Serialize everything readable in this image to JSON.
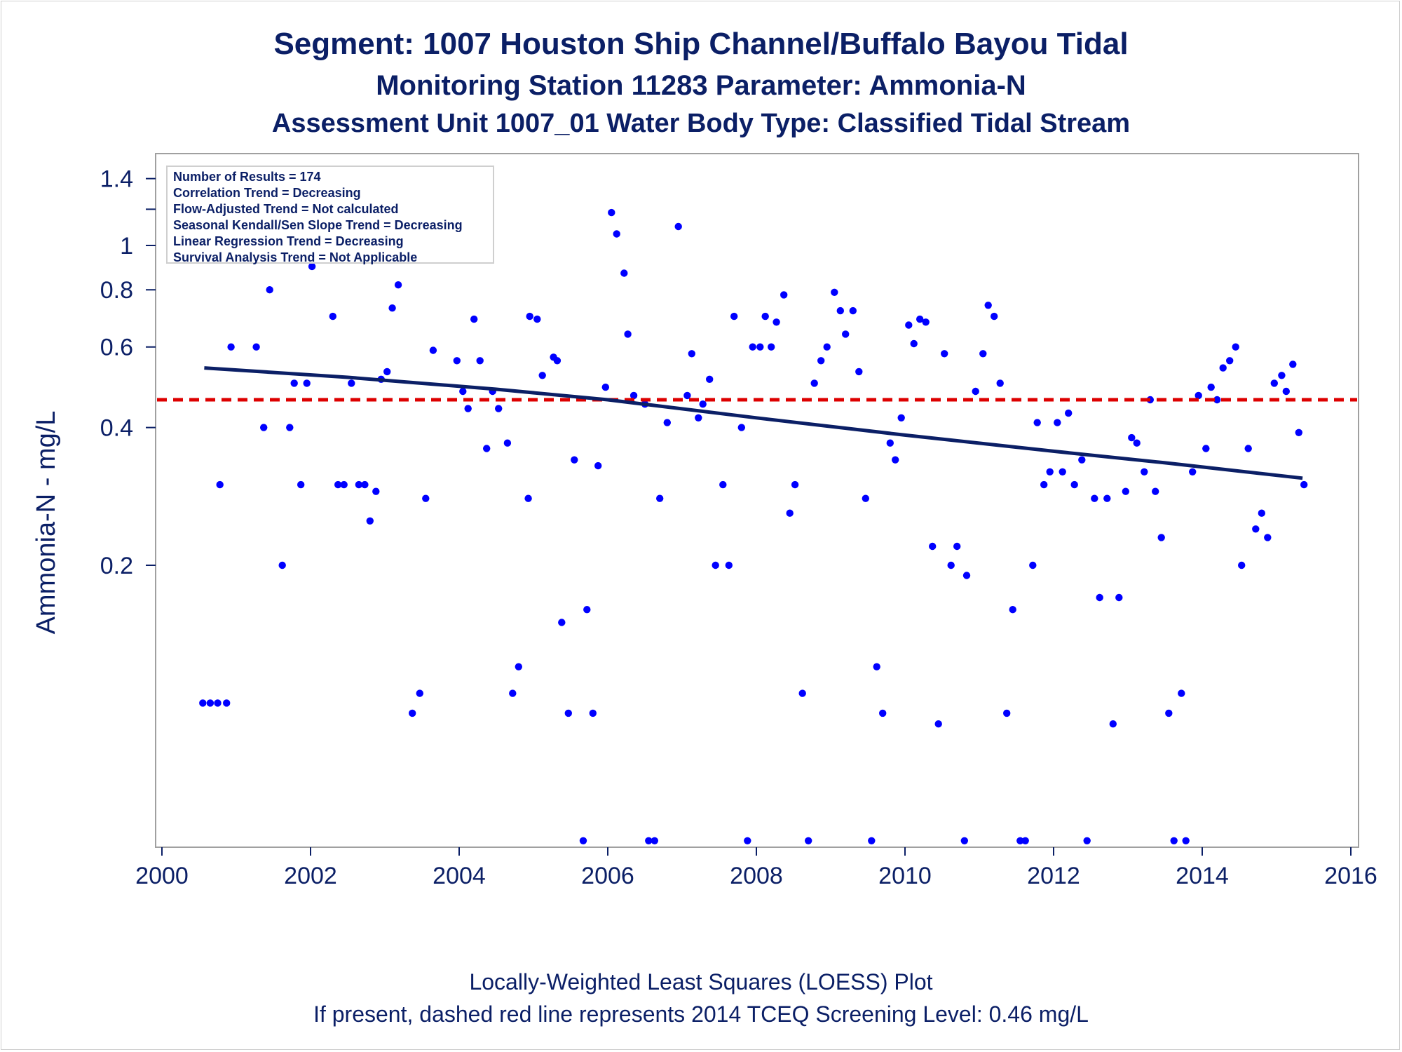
{
  "titles": {
    "line1": "Segment: 1007  Houston Ship Channel/Buffalo Bayou Tidal",
    "line2": "Monitoring Station 11283 Parameter: Ammonia-N",
    "line3": "Assessment Unit 1007_01   Water Body Type: Classified Tidal Stream"
  },
  "footer": {
    "line1": "Locally-Weighted Least Squares (LOESS) Plot",
    "line2": "If present, dashed red line represents 2014 TCEQ Screening Level: 0.46 mg/L"
  },
  "legend": [
    "Number of Results = 174",
    "Correlation Trend = Decreasing",
    "Flow-Adjusted Trend = Not calculated",
    "Seasonal Kendall/Sen Slope Trend = Decreasing",
    "Linear Regression Trend = Decreasing",
    "Survival Analysis Trend = Not Applicable"
  ],
  "colors": {
    "points": "#0000ff",
    "loess": "#0b1f66",
    "screening": "#dd0000",
    "text": "#0b1f66",
    "frame": "#a0a0a0"
  },
  "chart_data": {
    "type": "scatter",
    "ylabel": "Ammonia-N - mg/L",
    "xlabel": "",
    "yscale": "log",
    "xlim": [
      2000,
      2016
    ],
    "ylim": [
      0.05,
      1.5
    ],
    "xticks": [
      2000,
      2002,
      2004,
      2006,
      2008,
      2010,
      2012,
      2014,
      2016
    ],
    "yticks": [
      0.2,
      0.4,
      0.6,
      0.8,
      1,
      1.4
    ],
    "yticks_unlabeled": [
      1.2
    ],
    "screening_level": 0.46,
    "loess": {
      "x": [
        2000.57,
        2002.5,
        2004.5,
        2006,
        2008,
        2010,
        2012,
        2013.5,
        2015.35
      ],
      "y": [
        0.54,
        0.515,
        0.485,
        0.46,
        0.42,
        0.385,
        0.355,
        0.335,
        0.31
      ]
    },
    "points": [
      [
        2000.55,
        0.1
      ],
      [
        2000.65,
        0.1
      ],
      [
        2000.75,
        0.1
      ],
      [
        2000.87,
        0.1
      ],
      [
        2000.78,
        0.3
      ],
      [
        2000.93,
        0.6
      ],
      [
        2001.02,
        1.3
      ],
      [
        2001.12,
        1.45
      ],
      [
        2001.2,
        1.0
      ],
      [
        2001.27,
        0.6
      ],
      [
        2001.37,
        0.4
      ],
      [
        2001.45,
        0.8
      ],
      [
        2001.62,
        0.2
      ],
      [
        2001.72,
        0.4
      ],
      [
        2001.78,
        0.5
      ],
      [
        2001.87,
        0.3
      ],
      [
        2001.95,
        0.5
      ],
      [
        2002.02,
        0.9
      ],
      [
        2002.1,
        1.0
      ],
      [
        2002.18,
        1.0
      ],
      [
        2002.3,
        0.7
      ],
      [
        2002.37,
        0.3
      ],
      [
        2002.45,
        0.3
      ],
      [
        2002.55,
        0.5
      ],
      [
        2002.65,
        0.3
      ],
      [
        2002.73,
        0.3
      ],
      [
        2002.8,
        0.25
      ],
      [
        2002.88,
        0.29
      ],
      [
        2002.95,
        0.51
      ],
      [
        2003.03,
        0.53
      ],
      [
        2003.1,
        0.73
      ],
      [
        2003.18,
        0.82
      ],
      [
        2003.27,
        0.94
      ],
      [
        2003.37,
        0.095
      ],
      [
        2003.47,
        0.105
      ],
      [
        2003.55,
        0.28
      ],
      [
        2003.65,
        0.59
      ],
      [
        2003.97,
        0.56
      ],
      [
        2004.05,
        0.48
      ],
      [
        2004.12,
        0.44
      ],
      [
        2004.2,
        0.69
      ],
      [
        2004.28,
        0.56
      ],
      [
        2004.37,
        0.36
      ],
      [
        2004.45,
        0.48
      ],
      [
        2004.53,
        0.44
      ],
      [
        2004.65,
        0.37
      ],
      [
        2004.72,
        0.105
      ],
      [
        2004.8,
        0.12
      ],
      [
        2004.93,
        0.28
      ],
      [
        2004.95,
        0.7
      ],
      [
        2005.05,
        0.69
      ],
      [
        2005.12,
        0.52
      ],
      [
        2005.27,
        0.57
      ],
      [
        2005.32,
        0.56
      ],
      [
        2005.38,
        0.15
      ],
      [
        2005.47,
        0.095
      ],
      [
        2005.55,
        0.34
      ],
      [
        2005.67,
        0.05
      ],
      [
        2005.72,
        0.16
      ],
      [
        2005.8,
        0.095
      ],
      [
        2005.87,
        0.33
      ],
      [
        2005.97,
        0.49
      ],
      [
        2006.05,
        1.18
      ],
      [
        2006.12,
        1.06
      ],
      [
        2006.22,
        0.87
      ],
      [
        2006.27,
        0.64
      ],
      [
        2006.35,
        0.47
      ],
      [
        2006.5,
        0.45
      ],
      [
        2006.55,
        0.05
      ],
      [
        2006.63,
        0.05
      ],
      [
        2006.7,
        0.28
      ],
      [
        2006.8,
        0.41
      ],
      [
        2006.95,
        1.1
      ],
      [
        2007.07,
        0.47
      ],
      [
        2007.13,
        0.58
      ],
      [
        2007.22,
        0.42
      ],
      [
        2007.28,
        0.45
      ],
      [
        2007.37,
        0.51
      ],
      [
        2007.45,
        0.2
      ],
      [
        2007.55,
        0.3
      ],
      [
        2007.63,
        0.2
      ],
      [
        2007.7,
        0.7
      ],
      [
        2007.8,
        0.4
      ],
      [
        2007.88,
        0.05
      ],
      [
        2007.95,
        0.6
      ],
      [
        2008.05,
        0.6
      ],
      [
        2008.12,
        0.7
      ],
      [
        2008.2,
        0.6
      ],
      [
        2008.27,
        0.68
      ],
      [
        2008.37,
        0.78
      ],
      [
        2008.45,
        0.26
      ],
      [
        2008.52,
        0.3
      ],
      [
        2008.62,
        0.105
      ],
      [
        2008.7,
        0.05
      ],
      [
        2008.78,
        0.5
      ],
      [
        2008.87,
        0.56
      ],
      [
        2008.95,
        0.6
      ],
      [
        2009.05,
        0.79
      ],
      [
        2009.13,
        0.72
      ],
      [
        2009.2,
        0.64
      ],
      [
        2009.3,
        0.72
      ],
      [
        2009.38,
        0.53
      ],
      [
        2009.47,
        0.28
      ],
      [
        2009.55,
        0.05
      ],
      [
        2009.62,
        0.12
      ],
      [
        2009.7,
        0.095
      ],
      [
        2009.8,
        0.37
      ],
      [
        2009.87,
        0.34
      ],
      [
        2009.95,
        0.42
      ],
      [
        2010.05,
        0.67
      ],
      [
        2010.12,
        0.61
      ],
      [
        2010.2,
        0.69
      ],
      [
        2010.28,
        0.68
      ],
      [
        2010.37,
        0.22
      ],
      [
        2010.45,
        0.09
      ],
      [
        2010.53,
        0.58
      ],
      [
        2010.62,
        0.2
      ],
      [
        2010.7,
        0.22
      ],
      [
        2010.8,
        0.05
      ],
      [
        2010.83,
        0.19
      ],
      [
        2010.95,
        0.48
      ],
      [
        2011.05,
        0.58
      ],
      [
        2011.12,
        0.74
      ],
      [
        2011.2,
        0.7
      ],
      [
        2011.28,
        0.5
      ],
      [
        2011.37,
        0.095
      ],
      [
        2011.45,
        0.16
      ],
      [
        2011.55,
        0.05
      ],
      [
        2011.62,
        0.05
      ],
      [
        2011.72,
        0.2
      ],
      [
        2011.78,
        0.41
      ],
      [
        2011.87,
        0.3
      ],
      [
        2011.95,
        0.32
      ],
      [
        2012.05,
        0.41
      ],
      [
        2012.12,
        0.32
      ],
      [
        2012.2,
        0.43
      ],
      [
        2012.28,
        0.3
      ],
      [
        2012.38,
        0.34
      ],
      [
        2012.45,
        0.05
      ],
      [
        2012.55,
        0.28
      ],
      [
        2012.62,
        0.17
      ],
      [
        2012.72,
        0.28
      ],
      [
        2012.8,
        0.09
      ],
      [
        2012.88,
        0.17
      ],
      [
        2012.97,
        0.29
      ],
      [
        2013.05,
        0.38
      ],
      [
        2013.12,
        0.37
      ],
      [
        2013.22,
        0.32
      ],
      [
        2013.3,
        0.46
      ],
      [
        2013.37,
        0.29
      ],
      [
        2013.45,
        0.23
      ],
      [
        2013.55,
        0.095
      ],
      [
        2013.62,
        0.05
      ],
      [
        2013.72,
        0.105
      ],
      [
        2013.78,
        0.05
      ],
      [
        2013.87,
        0.32
      ],
      [
        2013.95,
        0.47
      ],
      [
        2014.05,
        0.36
      ],
      [
        2014.12,
        0.49
      ],
      [
        2014.2,
        0.46
      ],
      [
        2014.28,
        0.54
      ],
      [
        2014.37,
        0.56
      ],
      [
        2014.45,
        0.6
      ],
      [
        2014.53,
        0.2
      ],
      [
        2014.62,
        0.36
      ],
      [
        2014.72,
        0.24
      ],
      [
        2014.8,
        0.26
      ],
      [
        2014.88,
        0.23
      ],
      [
        2014.97,
        0.5
      ],
      [
        2015.07,
        0.52
      ],
      [
        2015.13,
        0.48
      ],
      [
        2015.22,
        0.55
      ],
      [
        2015.3,
        0.39
      ],
      [
        2015.37,
        0.3
      ]
    ]
  }
}
